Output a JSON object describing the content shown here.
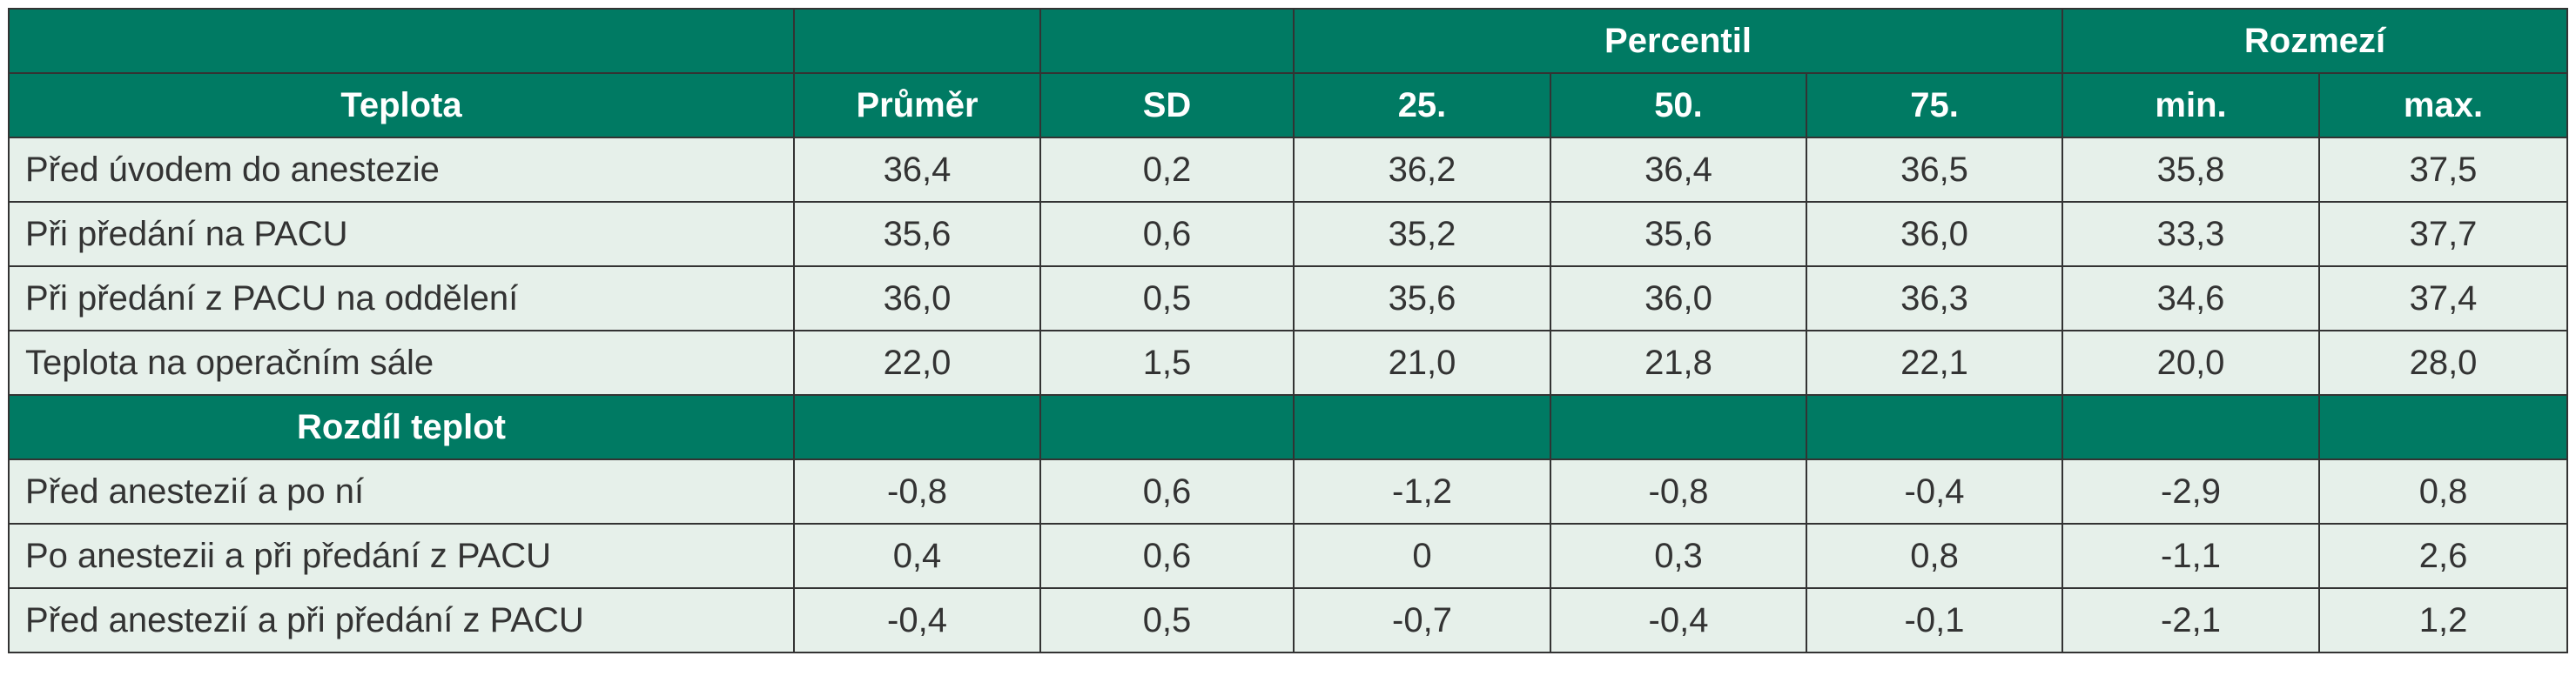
{
  "table": {
    "group_header": {
      "percentil": "Percentil",
      "rozmezi": "Rozmezí"
    },
    "columns": [
      "Teplota",
      "Průměr",
      "SD",
      "25.",
      "50.",
      "75.",
      "min.",
      "max."
    ],
    "rows": [
      [
        "Před úvodem do anestezie",
        "36,4",
        "0,2",
        "36,2",
        "36,4",
        "36,5",
        "35,8",
        "37,5"
      ],
      [
        "Při předání na PACU",
        "35,6",
        "0,6",
        "35,2",
        "35,6",
        "36,0",
        "33,3",
        "37,7"
      ],
      [
        "Při předání z PACU na oddělení",
        "36,0",
        "0,5",
        "35,6",
        "36,0",
        "36,3",
        "34,6",
        "37,4"
      ],
      [
        "Teplota na operačním sále",
        "22,0",
        "1,5",
        "21,0",
        "21,8",
        "22,1",
        "20,0",
        "28,0"
      ]
    ],
    "section": "Rozdíl teplot",
    "section_rows": [
      [
        "Před anestezií a po ní",
        "-0,8",
        "0,6",
        "-1,2",
        "-0,8",
        "-0,4",
        "-2,9",
        "0,8"
      ],
      [
        "Po anestezii a při předání z PACU",
        "0,4",
        "0,6",
        "0",
        "0,3",
        "0,8",
        "-1,1",
        "2,6"
      ],
      [
        "Před anestezií a při předání z PACU",
        "-0,4",
        "0,5",
        "-0,7",
        "-0,4",
        "-0,1",
        "-2,1",
        "1,2"
      ]
    ]
  }
}
